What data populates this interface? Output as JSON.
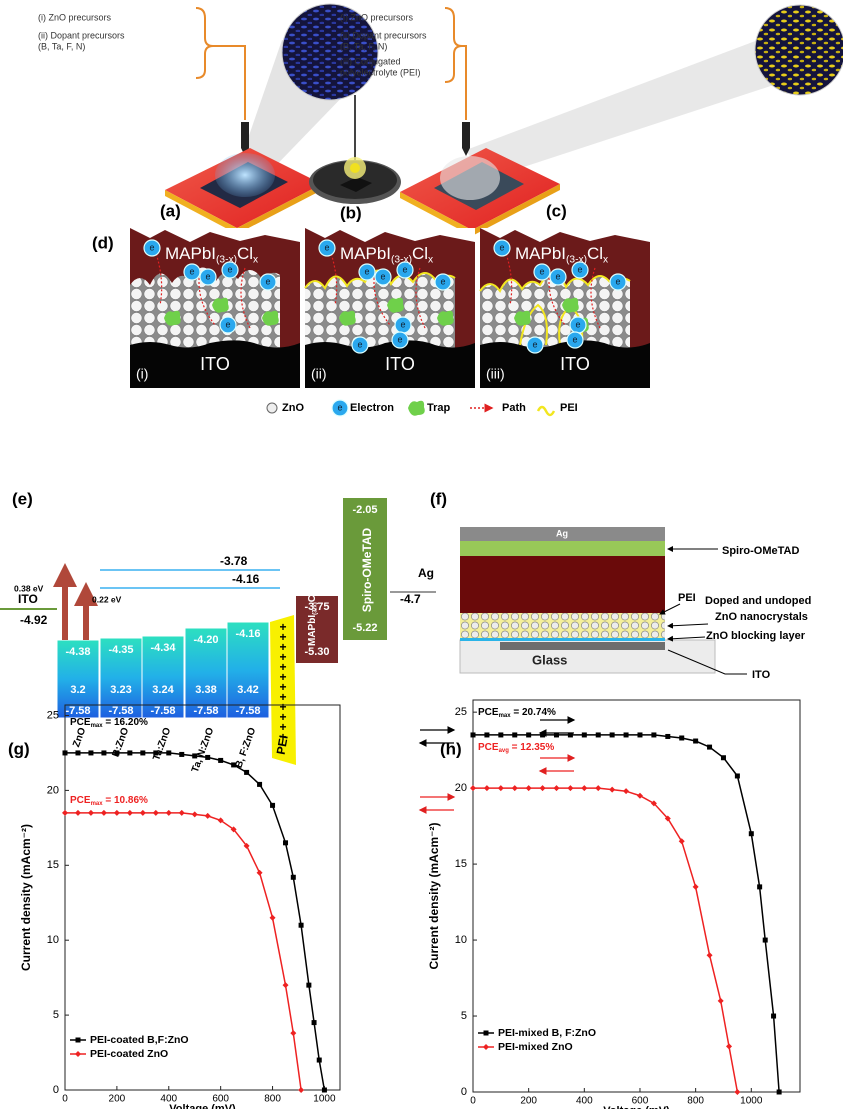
{
  "panel_labels": [
    "(a)",
    "(b)",
    "(c)",
    "(d)",
    "(e)",
    "(f)",
    "(g)",
    "(h)"
  ],
  "fabrication": {
    "spray": [
      "(i) ZnO precursors",
      "(ii) Dopant precursors",
      "(B, Ta, F, N)"
    ],
    "spray_pei": [
      "(i) ZnO precursors",
      "(ii) Dopant precursors",
      "(B, Ta, F, N)",
      "(iii) Conjugated",
      "polyelectrolyte (PEI)"
    ]
  },
  "perovskite": [
    "MAPbI",
    "(3-x)",
    "Cl",
    "x"
  ],
  "mechanism": {
    "panels": [
      "(i)",
      "(ii)",
      "(iii)"
    ],
    "substrate": "ITO",
    "electron_symbol": "e",
    "legend": [
      "ZnO",
      "Electron",
      "Trap",
      "Path",
      "PEI"
    ]
  },
  "energy": {
    "lines": [
      "-3.78",
      "-4.16"
    ],
    "offsets": [
      "0.38 eV",
      "0.22 eV"
    ],
    "ito": {
      "label": "ITO",
      "value": "-4.92"
    },
    "columns": [
      {
        "name": "ZnO",
        "cb": "-4.38",
        "gap": "3.2",
        "vb": "-7.58"
      },
      {
        "name": "B:ZnO",
        "cb": "-4.35",
        "gap": "3.23",
        "vb": "-7.58"
      },
      {
        "name": "Ta:ZnO",
        "cb": "-4.34",
        "gap": "3.24",
        "vb": "-7.58"
      },
      {
        "name": "Ta, N:ZnO",
        "cb": "-4.20",
        "gap": "3.38",
        "vb": "-7.58"
      },
      {
        "name": "B, F:ZnO",
        "cb": "-4.16",
        "gap": "3.42",
        "vb": "-7.58"
      }
    ],
    "pei": "PEI",
    "pei_symbol": "+",
    "perovskite": {
      "cb": "-3.75",
      "vb": "-5.30"
    },
    "spiro": {
      "name": "Spiro-OMeTAD",
      "cb": "-2.05",
      "vb": "-5.22"
    },
    "ag": {
      "label": "Ag",
      "value": "-4.7"
    }
  },
  "device": {
    "ag": "Ag",
    "glass": "Glass",
    "labels": [
      "Spiro-OMeTAD",
      "PEI",
      "Doped and undoped",
      "ZnO nanocrystals",
      "ZnO blocking layer",
      "ITO"
    ]
  },
  "chart_data": [
    {
      "type": "line",
      "xlabel": "Voltage (mV)",
      "ylabel": "Current density (mAcm⁻²)",
      "xlim": [
        0,
        1060
      ],
      "ylim": [
        0,
        25.7
      ],
      "xticks": [
        0,
        200,
        400,
        600,
        800,
        1000
      ],
      "yticks": [
        0,
        5,
        10,
        15,
        20,
        25
      ],
      "annotations": [
        {
          "parts": [
            "PCE",
            "max",
            " = 16.20%"
          ],
          "color": "#000000"
        },
        {
          "parts": [
            "PCE",
            "max",
            " = 10.86%"
          ],
          "color": "#ee2222"
        }
      ],
      "series": [
        {
          "name": "PEI-coated B,F:ZnO",
          "color": "#000000",
          "marker": "square",
          "x": [
            0,
            50,
            100,
            150,
            200,
            250,
            300,
            350,
            400,
            450,
            500,
            550,
            600,
            650,
            700,
            750,
            800,
            850,
            880,
            910,
            940,
            960,
            980,
            1000
          ],
          "values": [
            22.5,
            22.5,
            22.5,
            22.5,
            22.5,
            22.5,
            22.5,
            22.5,
            22.5,
            22.4,
            22.3,
            22.2,
            22.0,
            21.7,
            21.2,
            20.4,
            19.0,
            16.5,
            14.2,
            11.0,
            7.0,
            4.5,
            2.0,
            0
          ]
        },
        {
          "name": "PEI-coated ZnO",
          "color": "#ee2222",
          "marker": "diamond",
          "x": [
            0,
            50,
            100,
            150,
            200,
            250,
            300,
            350,
            400,
            450,
            500,
            550,
            600,
            650,
            700,
            750,
            800,
            850,
            880,
            910
          ],
          "values": [
            18.5,
            18.5,
            18.5,
            18.5,
            18.5,
            18.5,
            18.5,
            18.5,
            18.5,
            18.5,
            18.4,
            18.3,
            18.0,
            17.4,
            16.3,
            14.5,
            11.5,
            7.0,
            3.8,
            0
          ]
        }
      ]
    },
    {
      "type": "line",
      "xlabel": "Voltage (mV)",
      "ylabel": "Current density (mAcm⁻²)",
      "xlim": [
        0,
        1175
      ],
      "ylim": [
        0,
        25.8
      ],
      "xticks": [
        0,
        200,
        400,
        600,
        800,
        1000
      ],
      "yticks": [
        0,
        5,
        10,
        15,
        20,
        25
      ],
      "annotations": [
        {
          "parts": [
            "PCE",
            "max",
            " = 20.74%"
          ],
          "color": "#000000"
        },
        {
          "parts": [
            "PCE",
            "avg",
            " = 12.35%"
          ],
          "color": "#ee2222"
        }
      ],
      "series": [
        {
          "name": "PEI-mixed B, F:ZnO",
          "color": "#000000",
          "marker": "square",
          "x": [
            0,
            50,
            100,
            150,
            200,
            250,
            300,
            350,
            400,
            450,
            500,
            550,
            600,
            650,
            700,
            750,
            800,
            850,
            900,
            950,
            1000,
            1030,
            1050,
            1080,
            1100
          ],
          "values": [
            23.5,
            23.5,
            23.5,
            23.5,
            23.5,
            23.5,
            23.5,
            23.5,
            23.5,
            23.5,
            23.5,
            23.5,
            23.5,
            23.5,
            23.4,
            23.3,
            23.1,
            22.7,
            22.0,
            20.8,
            17.0,
            13.5,
            10.0,
            5.0,
            0
          ]
        },
        {
          "name": "PEI-mixed ZnO",
          "color": "#ee2222",
          "marker": "diamond",
          "x": [
            0,
            50,
            100,
            150,
            200,
            250,
            300,
            350,
            400,
            450,
            500,
            550,
            600,
            650,
            700,
            750,
            800,
            850,
            890,
            920,
            950
          ],
          "values": [
            20.0,
            20.0,
            20.0,
            20.0,
            20.0,
            20.0,
            20.0,
            20.0,
            20.0,
            20.0,
            19.9,
            19.8,
            19.5,
            19.0,
            18.0,
            16.5,
            13.5,
            9.0,
            6.0,
            3.0,
            0
          ]
        }
      ]
    }
  ]
}
